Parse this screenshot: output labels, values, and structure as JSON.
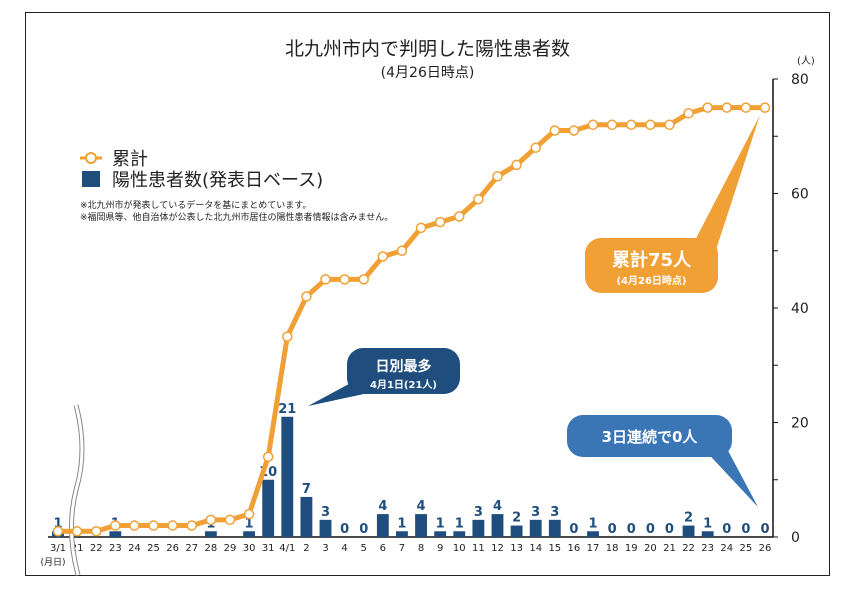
{
  "title": "北九州市内で判明した陽性患者数",
  "subtitle": "(4月26日時点)",
  "unit": "(人)",
  "date_axis_label": "(月日)",
  "legend": {
    "cumulative": "累計",
    "daily": "陽性患者数(発表日ベース)"
  },
  "notes": [
    "※北九州市が発表しているデータを基にまとめています。",
    "※福岡県等、他自治体が公表した北九州市居住の陽性患者情報は含みません。"
  ],
  "callouts": {
    "max": {
      "title": "日別最多",
      "sub": "4月1日(21人)"
    },
    "total": {
      "title": "累計75人",
      "sub": "(4月26日時点)"
    },
    "zero": {
      "title": "3日連続で0人"
    }
  },
  "colors": {
    "bar": "#1f4e7e",
    "line": "#f0a035",
    "navy_callout": "#1f4e7e",
    "orange_callout": "#f0a035",
    "blue_callout": "#3a75b5"
  },
  "chart_data": {
    "type": "bar+line",
    "x": [
      "3/1",
      "21",
      "22",
      "23",
      "24",
      "25",
      "26",
      "27",
      "28",
      "29",
      "30",
      "31",
      "4/1",
      "2",
      "3",
      "4",
      "5",
      "6",
      "7",
      "8",
      "9",
      "10",
      "11",
      "12",
      "13",
      "14",
      "15",
      "16",
      "17",
      "18",
      "19",
      "20",
      "21",
      "22",
      "23",
      "24",
      "25",
      "26"
    ],
    "series": [
      {
        "name": "陽性患者数(発表日ベース)",
        "type": "bar",
        "values": [
          1,
          0,
          0,
          1,
          0,
          0,
          0,
          0,
          1,
          0,
          1,
          10,
          21,
          7,
          3,
          0,
          0,
          4,
          1,
          4,
          1,
          1,
          3,
          4,
          2,
          3,
          3,
          0,
          1,
          0,
          0,
          0,
          0,
          2,
          1,
          0,
          0,
          0
        ],
        "labels": [
          "1",
          "",
          "",
          "1",
          "",
          "",
          "",
          "",
          "1",
          "",
          "1",
          "10",
          "21",
          "7",
          "3",
          "0",
          "0",
          "4",
          "1",
          "4",
          "1",
          "1",
          "3",
          "4",
          "2",
          "3",
          "3",
          "0",
          "1",
          "0",
          "0",
          "0",
          "0",
          "2",
          "1",
          "0",
          "0",
          "0"
        ]
      },
      {
        "name": "累計",
        "type": "line",
        "values": [
          1,
          1,
          1,
          2,
          2,
          2,
          2,
          2,
          3,
          3,
          4,
          14,
          35,
          42,
          45,
          45,
          45,
          49,
          50,
          54,
          55,
          56,
          59,
          63,
          65,
          68,
          71,
          71,
          72,
          72,
          72,
          72,
          72,
          74,
          75,
          75,
          75,
          75
        ]
      }
    ],
    "y_axis": {
      "position": "right",
      "range": [
        0,
        80
      ],
      "ticks": [
        0,
        20,
        40,
        60,
        80
      ],
      "minor_step": 10
    },
    "axis_break_after": "3/1"
  }
}
